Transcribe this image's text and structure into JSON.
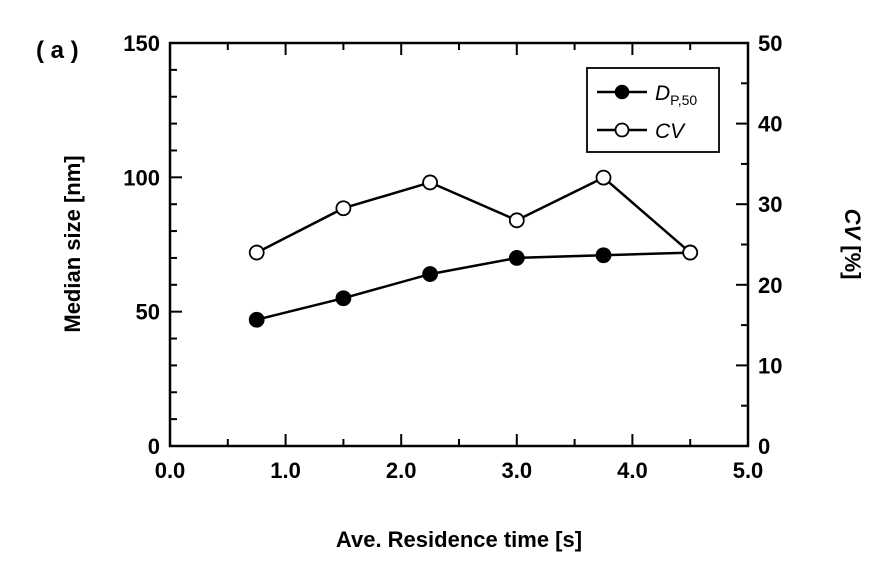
{
  "chart_data": {
    "type": "line",
    "panel_label": "( a )",
    "xlabel": "Ave. Residence time [s]",
    "ylabel": "Median size [nm]",
    "y2label_italic": "CV",
    "y2label_rest": " [%]",
    "xlim": [
      0.0,
      5.0
    ],
    "ylim": [
      0,
      150
    ],
    "y2lim": [
      0,
      50
    ],
    "x_ticks": [
      "0.0",
      "1.0",
      "2.0",
      "3.0",
      "4.0",
      "5.0"
    ],
    "y_ticks": [
      "0",
      "50",
      "100",
      "150"
    ],
    "y2_ticks": [
      "0",
      "10",
      "20",
      "30",
      "40",
      "50"
    ],
    "legend_position": "top-right",
    "series": [
      {
        "name": "D",
        "name_sub": "P,50",
        "axis": "left",
        "marker": "filled-circle",
        "x": [
          0.75,
          1.5,
          2.25,
          3.0,
          3.75,
          4.5
        ],
        "y": [
          47,
          55,
          64,
          70,
          71,
          72
        ]
      },
      {
        "name": "CV",
        "axis": "right",
        "marker": "open-circle",
        "x": [
          0.75,
          1.5,
          2.25,
          3.0,
          3.75,
          4.5
        ],
        "y": [
          24,
          29.5,
          32.7,
          28,
          33.3,
          24
        ]
      }
    ]
  }
}
